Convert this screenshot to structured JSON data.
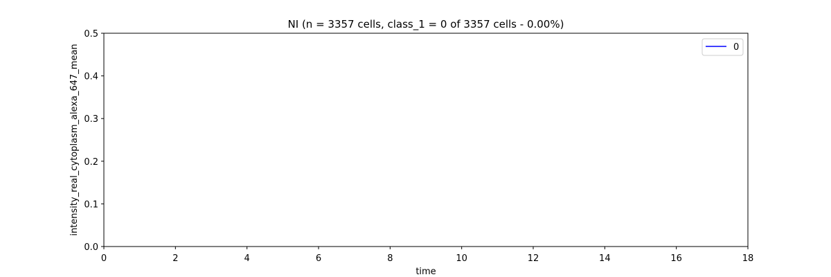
{
  "chart_data": {
    "type": "line",
    "title": "NI (n = 3357 cells, class_1 = 0 of 3357 cells - 0.00%)",
    "xlabel": "time",
    "ylabel": "intensity_real_cytoplasm_alexa_647_mean",
    "xlim": [
      0,
      18
    ],
    "ylim": [
      0,
      0.5
    ],
    "xticks": [
      0,
      2,
      4,
      6,
      8,
      10,
      12,
      14,
      16,
      18
    ],
    "yticks": [
      0.0,
      0.1,
      0.2,
      0.3,
      0.4,
      0.5
    ],
    "xtick_labels": [
      "0",
      "2",
      "4",
      "6",
      "8",
      "10",
      "12",
      "14",
      "16",
      "18"
    ],
    "ytick_labels": [
      "0.0",
      "0.1",
      "0.2",
      "0.3",
      "0.4",
      "0.5"
    ],
    "grid": false,
    "legend_position": "top-right",
    "series": [
      {
        "name": "0",
        "color": "#0000ff",
        "x": [],
        "y": []
      }
    ]
  }
}
